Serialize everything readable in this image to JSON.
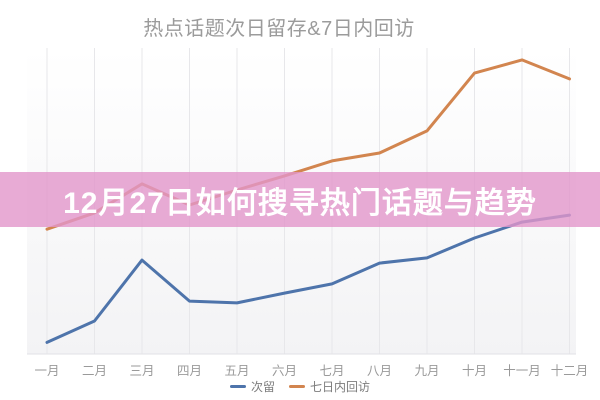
{
  "title": {
    "text": "热点话题次日留存&7日内回访",
    "color": "#9b9b9b"
  },
  "overlay_banner": {
    "text": "12月27日如何搜寻热门话题与趋势",
    "bg_color": "rgba(226,150,203,0.8)",
    "text_color": "#ffffff"
  },
  "chart_data": {
    "type": "line",
    "title": "热点话题次日留存&7日内回访",
    "categories": [
      "一月",
      "二月",
      "三月",
      "四月",
      "五月",
      "六月",
      "七月",
      "八月",
      "九月",
      "十月",
      "十一月",
      "十二月"
    ],
    "series": [
      {
        "name": "次留",
        "color": "#4e74ab",
        "values": [
          3.8,
          10.8,
          30.7,
          17.3,
          16.7,
          19.9,
          22.9,
          29.7,
          31.4,
          37.9,
          43.1,
          45.4
        ]
      },
      {
        "name": "七日内回访",
        "color": "#d2854f",
        "values": [
          40.8,
          46.1,
          55.6,
          48.7,
          53.6,
          58.2,
          63.1,
          65.7,
          72.9,
          91.8,
          96.1,
          89.9
        ]
      }
    ],
    "xlabel": "",
    "ylabel": "",
    "ylim": [
      0,
      100
    ],
    "y_axis_labels_visible": false,
    "grid": "vertical-only",
    "gridline_color": "#e7e7ea",
    "axis_label_color": "#9a9a9a",
    "legend_position": "bottom"
  }
}
